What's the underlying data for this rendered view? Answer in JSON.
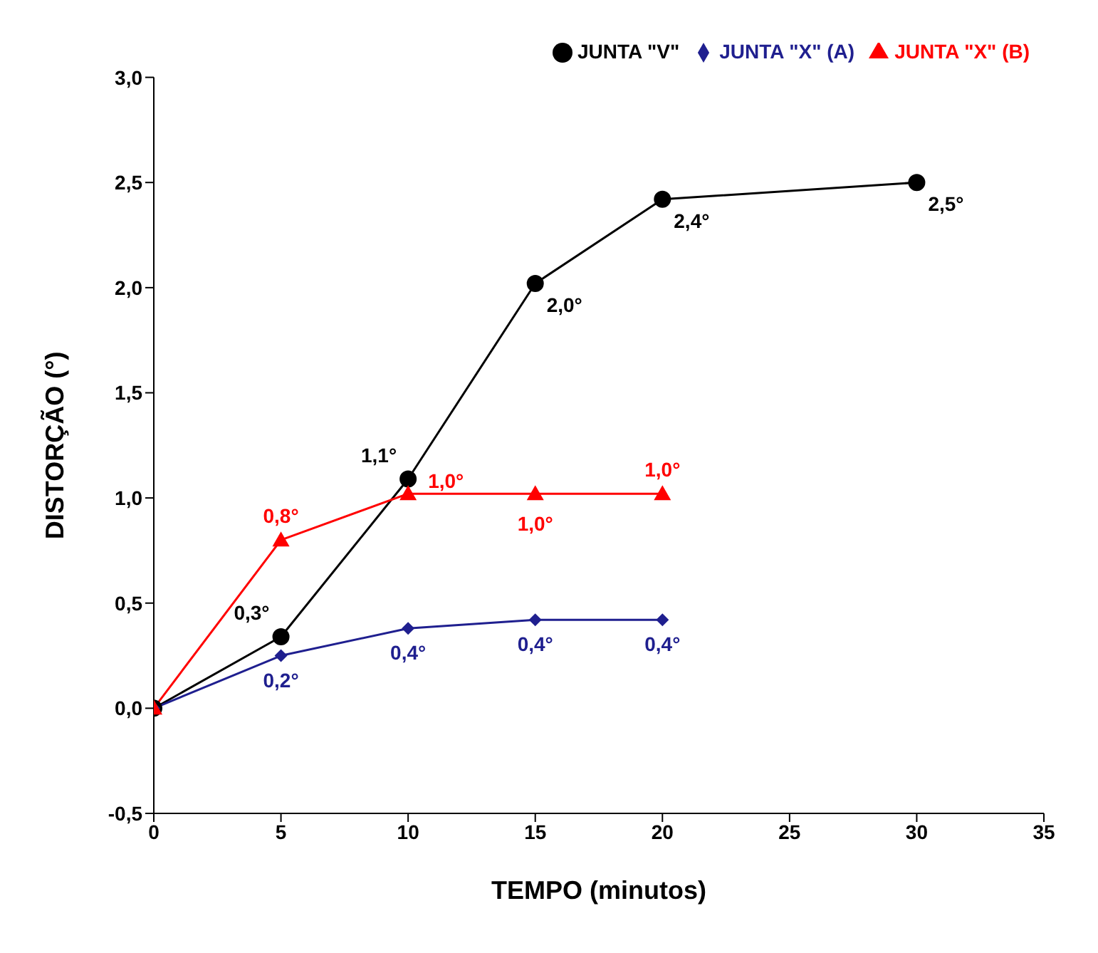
{
  "chart_data": {
    "type": "line",
    "xlabel": "TEMPO (minutos)",
    "ylabel": "DISTORÇÃO (°)",
    "xlim": [
      0,
      35
    ],
    "xticks": [
      0,
      5,
      10,
      15,
      20,
      25,
      30,
      35
    ],
    "ylim": [
      -0.5,
      3
    ],
    "yticks": [
      {
        "value": -0.5,
        "label": "-0,5"
      },
      {
        "value": 0,
        "label": "0,0"
      },
      {
        "value": 0.5,
        "label": "0,5"
      },
      {
        "value": 1,
        "label": "1,0"
      },
      {
        "value": 1.5,
        "label": "1,5"
      },
      {
        "value": 2,
        "label": "2,0"
      },
      {
        "value": 2.5,
        "label": "2,5"
      },
      {
        "value": 3,
        "label": "3,0"
      }
    ],
    "grid": false,
    "legend": "top right",
    "line_style": "solid",
    "series": [
      {
        "name": "JUNTA \"V\"",
        "color": "#000000",
        "marker": "circle",
        "x": [
          0,
          5,
          10,
          15,
          20,
          30
        ],
        "values": [
          0,
          0.34,
          1.09,
          2.02,
          2.42,
          2.5
        ],
        "value_labels": [
          null,
          "0,3°",
          "1,1°",
          "2,0°",
          "2,4°",
          "2,5°"
        ]
      },
      {
        "name": "JUNTA \"X\" (A)",
        "color": "#1f1f8f",
        "marker": "diamond",
        "x": [
          0,
          5,
          10,
          15,
          20
        ],
        "values": [
          0,
          0.25,
          0.38,
          0.42,
          0.42
        ],
        "value_labels": [
          null,
          "0,2°",
          "0,4°",
          "0,4°",
          "0,4°"
        ]
      },
      {
        "name": "JUNTA \"X\" (B)",
        "color": "#ff0000",
        "marker": "triangle",
        "x": [
          0,
          5,
          10,
          15,
          20
        ],
        "values": [
          0,
          0.8,
          1.02,
          1.02,
          1.02
        ],
        "value_labels": [
          null,
          "0,8°",
          "1,0°",
          "1,0°",
          "1,0°"
        ]
      }
    ]
  }
}
